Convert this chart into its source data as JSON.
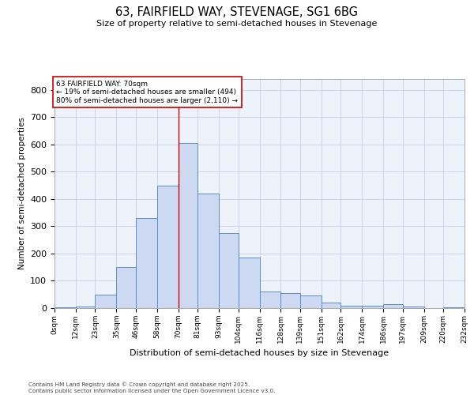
{
  "title": "63, FAIRFIELD WAY, STEVENAGE, SG1 6BG",
  "subtitle": "Size of property relative to semi-detached houses in Stevenage",
  "xlabel": "Distribution of semi-detached houses by size in Stevenage",
  "ylabel": "Number of semi-detached properties",
  "property_label": "63 FAIRFIELD WAY: 70sqm",
  "pct_smaller": 19,
  "pct_larger": 80,
  "n_smaller": 494,
  "n_larger": 2110,
  "bin_labels": [
    "0sqm",
    "12sqm",
    "23sqm",
    "35sqm",
    "46sqm",
    "58sqm",
    "70sqm",
    "81sqm",
    "93sqm",
    "104sqm",
    "116sqm",
    "128sqm",
    "139sqm",
    "151sqm",
    "162sqm",
    "174sqm",
    "186sqm",
    "197sqm",
    "209sqm",
    "220sqm",
    "232sqm"
  ],
  "bin_edges": [
    0,
    12,
    23,
    35,
    46,
    58,
    70,
    81,
    93,
    104,
    116,
    128,
    139,
    151,
    162,
    174,
    186,
    197,
    209,
    220,
    232
  ],
  "bar_values": [
    2,
    6,
    50,
    150,
    330,
    450,
    605,
    420,
    275,
    185,
    60,
    55,
    45,
    20,
    10,
    8,
    15,
    5,
    0,
    3
  ],
  "bar_color": "#ccd9f0",
  "bar_edge_color": "#5b8cca",
  "vline_color": "#cc0000",
  "vline_x": 70,
  "annotation_box_color": "#cc0000",
  "grid_color": "#c0c8e0",
  "bg_color": "#eef2fa",
  "footer_text": "Contains HM Land Registry data © Crown copyright and database right 2025.\nContains public sector information licensed under the Open Government Licence v3.0.",
  "ylim": [
    0,
    840
  ],
  "yticks": [
    0,
    100,
    200,
    300,
    400,
    500,
    600,
    700,
    800
  ]
}
